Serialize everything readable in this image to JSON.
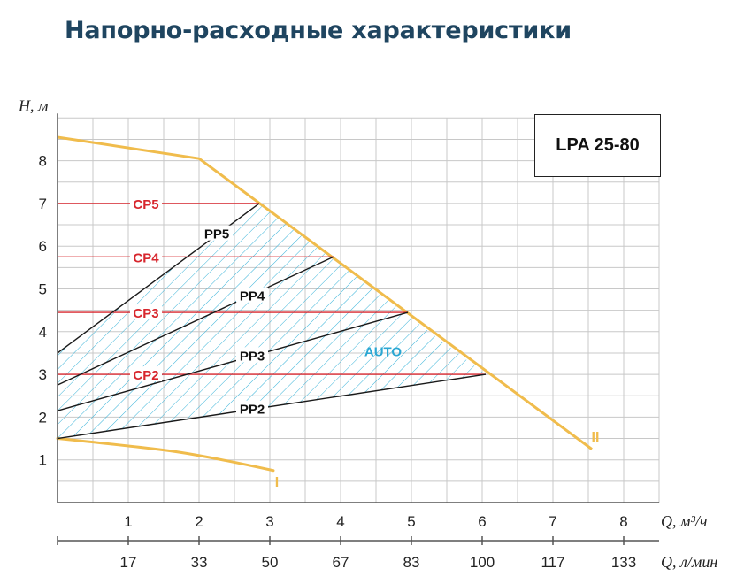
{
  "title": "Напорно-расходные характеристики",
  "model": "LPA 25-80",
  "colors": {
    "title": "#1f4560",
    "grid": "#c8c8c8",
    "axis": "#555555",
    "max_curve": "#f0bc4c",
    "cp_line": "#d7262d",
    "cp_label": "#d7262d",
    "pp_line": "#1a1a1a",
    "hatch": "#38b3d9",
    "auto_label": "#2aa7d3"
  },
  "chart_data": {
    "type": "line",
    "title": "Напорно-расходные характеристики",
    "ylabel": "H, м",
    "xlabel": "Q, м³/ч",
    "x2label": "Q, л/мин",
    "xlim": [
      0,
      8.5
    ],
    "ylim": [
      0,
      9
    ],
    "y_ticks": [
      "1",
      "2",
      "3",
      "4",
      "5",
      "6",
      "7",
      "8"
    ],
    "x_ticks": [
      "1",
      "2",
      "3",
      "4",
      "5",
      "6",
      "7",
      "8"
    ],
    "x2_ticks": [
      {
        "x": 1,
        "label": "17"
      },
      {
        "x": 2,
        "label": "33"
      },
      {
        "x": 3,
        "label": "50"
      },
      {
        "x": 4,
        "label": "67"
      },
      {
        "x": 5,
        "label": "83"
      },
      {
        "x": 6,
        "label": "100"
      },
      {
        "x": 7,
        "label": "117"
      },
      {
        "x": 8,
        "label": "133"
      }
    ],
    "grid": true,
    "series": [
      {
        "name": "II",
        "role": "max",
        "points": [
          [
            0,
            8.55
          ],
          [
            2,
            8.05
          ],
          [
            7.55,
            1.25
          ]
        ],
        "label_at": [
          7.6,
          1.55
        ]
      },
      {
        "name": "I",
        "role": "min",
        "points": [
          [
            0,
            1.5
          ],
          [
            1,
            1.33
          ],
          [
            2,
            1.13
          ],
          [
            3.05,
            0.75
          ]
        ],
        "label_at": [
          3.1,
          0.5
        ]
      },
      {
        "name": "CP5",
        "role": "cp",
        "points": [
          [
            0,
            7.0
          ],
          [
            2.85,
            7.0
          ]
        ],
        "label_at": [
          1.25,
          7.0
        ]
      },
      {
        "name": "CP4",
        "role": "cp",
        "points": [
          [
            0,
            5.75
          ],
          [
            3.9,
            5.75
          ]
        ],
        "label_at": [
          1.25,
          5.75
        ]
      },
      {
        "name": "CP3",
        "role": "cp",
        "points": [
          [
            0,
            4.45
          ],
          [
            4.95,
            4.45
          ]
        ],
        "label_at": [
          1.25,
          4.45
        ]
      },
      {
        "name": "CP2",
        "role": "cp",
        "points": [
          [
            0,
            3.0
          ],
          [
            6.05,
            3.0
          ]
        ],
        "label_at": [
          1.25,
          3.0
        ]
      },
      {
        "name": "PP5",
        "role": "pp",
        "points": [
          [
            0,
            3.5
          ],
          [
            2.85,
            7.0
          ]
        ],
        "label_at": [
          2.25,
          6.3
        ]
      },
      {
        "name": "PP4",
        "role": "pp",
        "points": [
          [
            0,
            2.75
          ],
          [
            3.9,
            5.75
          ]
        ],
        "label_at": [
          2.75,
          4.85
        ]
      },
      {
        "name": "PP3",
        "role": "pp",
        "points": [
          [
            0,
            2.15
          ],
          [
            4.95,
            4.45
          ]
        ],
        "label_at": [
          2.75,
          3.45
        ]
      },
      {
        "name": "PP2",
        "role": "pp",
        "points": [
          [
            0,
            1.5
          ],
          [
            6.05,
            3.0
          ]
        ],
        "label_at": [
          2.75,
          2.2
        ]
      }
    ],
    "regions": [
      {
        "name": "AUTO",
        "polygon": [
          [
            0,
            1.5
          ],
          [
            6.05,
            3.0
          ],
          [
            2.85,
            7.0
          ],
          [
            0,
            3.5
          ]
        ],
        "label_at": [
          4.6,
          3.55
        ]
      }
    ]
  }
}
